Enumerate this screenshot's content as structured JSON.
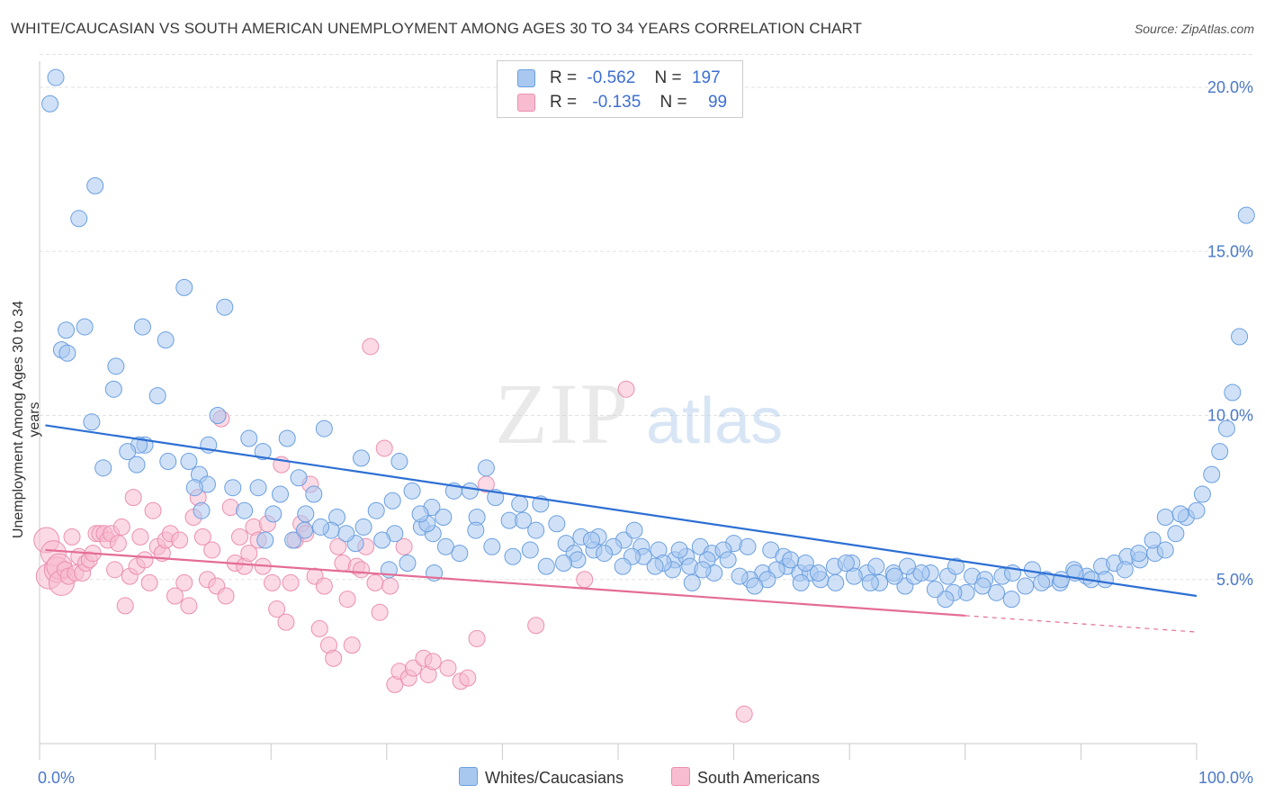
{
  "title": "WHITE/CAUCASIAN VS SOUTH AMERICAN UNEMPLOYMENT AMONG AGES 30 TO 34 YEARS CORRELATION CHART",
  "source": "Source: ZipAtlas.com",
  "watermark": {
    "zip": "ZIP",
    "atlas": "atlas"
  },
  "legend": {
    "rows": [
      {
        "r_label": "R =",
        "r_value": "-0.562",
        "n_label": "N =",
        "n_value": "197"
      },
      {
        "r_label": "R =",
        "r_value": "-0.135",
        "n_label": "N =",
        "n_value": "99"
      }
    ]
  },
  "colors": {
    "blue_fill": "#a9c8f0",
    "blue_stroke": "#6a9fe0",
    "blue_line": "#2d6fd3",
    "pink_fill": "#f7bcd0",
    "pink_stroke": "#ec8fb0",
    "pink_line": "#e46d95",
    "axis_text": "#4a78c8",
    "grid": "#e2e2e2"
  },
  "chart_data": {
    "type": "scatter",
    "title": "WHITE/CAUCASIAN VS SOUTH AMERICAN UNEMPLOYMENT AMONG AGES 30 TO 34 YEARS CORRELATION CHART",
    "xlabel": "",
    "ylabel": "Unemployment Among Ages 30 to 34 years",
    "xlim": [
      0,
      100
    ],
    "ylim": [
      0,
      21
    ],
    "x_tick_labels": [
      "0.0%",
      "100.0%"
    ],
    "y_ticks": [
      5,
      10,
      15,
      20
    ],
    "y_tick_labels": [
      "5.0%",
      "10.0%",
      "15.0%",
      "20.0%"
    ],
    "series": [
      {
        "name": "Whites/Caucasians",
        "r": -0.562,
        "n": 197,
        "trend": {
          "x0": 0.5,
          "y0": 9.7,
          "x1": 100,
          "y1": 4.5
        },
        "points": [
          [
            1.4,
            20.3
          ],
          [
            0.9,
            19.5
          ],
          [
            4.8,
            17
          ],
          [
            3.4,
            16
          ],
          [
            12.5,
            13.9
          ],
          [
            16,
            13.3
          ],
          [
            3.9,
            12.7
          ],
          [
            8.9,
            12.7
          ],
          [
            2.3,
            12.6
          ],
          [
            10.9,
            12.3
          ],
          [
            1.9,
            12
          ],
          [
            2.4,
            11.9
          ],
          [
            6.6,
            11.5
          ],
          [
            6.4,
            10.8
          ],
          [
            10.2,
            10.6
          ],
          [
            24.6,
            9.6
          ],
          [
            15.4,
            10
          ],
          [
            4.5,
            9.8
          ],
          [
            18.1,
            9.3
          ],
          [
            21.4,
            9.3
          ],
          [
            14.6,
            9.1
          ],
          [
            9.1,
            9.1
          ],
          [
            8.6,
            9.1
          ],
          [
            7.6,
            8.9
          ],
          [
            19.3,
            8.9
          ],
          [
            11.1,
            8.6
          ],
          [
            12.9,
            8.6
          ],
          [
            8.4,
            8.5
          ],
          [
            5.5,
            8.4
          ],
          [
            13.8,
            8.2
          ],
          [
            22.4,
            8.1
          ],
          [
            27.8,
            8.7
          ],
          [
            31.1,
            8.6
          ],
          [
            32.2,
            7.7
          ],
          [
            14.5,
            7.9
          ],
          [
            13.4,
            7.8
          ],
          [
            16.7,
            7.8
          ],
          [
            18.9,
            7.8
          ],
          [
            20.8,
            7.6
          ],
          [
            23.7,
            7.6
          ],
          [
            30.5,
            7.4
          ],
          [
            33.9,
            7.2
          ],
          [
            38.6,
            8.4
          ],
          [
            35.8,
            7.7
          ],
          [
            37.2,
            7.7
          ],
          [
            39.4,
            7.5
          ],
          [
            41.5,
            7.3
          ],
          [
            43.3,
            7.3
          ],
          [
            25.7,
            6.9
          ],
          [
            29.1,
            7.1
          ],
          [
            20.2,
            7
          ],
          [
            23,
            7
          ],
          [
            14,
            7.1
          ],
          [
            28,
            6.6
          ],
          [
            34.9,
            6.9
          ],
          [
            33,
            6.6
          ],
          [
            30.7,
            6.4
          ],
          [
            37.8,
            6.9
          ],
          [
            34,
            6.4
          ],
          [
            33.5,
            6.7
          ],
          [
            32.9,
            7
          ],
          [
            40.6,
            6.8
          ],
          [
            41.8,
            6.8
          ],
          [
            44.7,
            6.7
          ],
          [
            42.9,
            6.5
          ],
          [
            45.5,
            6.1
          ],
          [
            46.8,
            6.3
          ],
          [
            48.3,
            6.3
          ],
          [
            50.5,
            6.2
          ],
          [
            49.6,
            6
          ],
          [
            52,
            6
          ],
          [
            51.4,
            6.5
          ],
          [
            47.9,
            5.9
          ],
          [
            46.2,
            5.8
          ],
          [
            53.5,
            5.9
          ],
          [
            54.9,
            5.6
          ],
          [
            55.9,
            5.7
          ],
          [
            57.1,
            6
          ],
          [
            58.1,
            5.8
          ],
          [
            60,
            6.1
          ],
          [
            61.2,
            6
          ],
          [
            63.2,
            5.9
          ],
          [
            64.3,
            5.7
          ],
          [
            59.1,
            5.9
          ],
          [
            56.2,
            5.4
          ],
          [
            54.7,
            5.3
          ],
          [
            57.7,
            5.6
          ],
          [
            62.5,
            5.2
          ],
          [
            61.4,
            5
          ],
          [
            64.6,
            5.4
          ],
          [
            65.7,
            5.2
          ],
          [
            66.6,
            5.2
          ],
          [
            65.8,
            4.9
          ],
          [
            67.5,
            5
          ],
          [
            68.7,
            5.4
          ],
          [
            70.2,
            5.5
          ],
          [
            71.5,
            5.2
          ],
          [
            72.3,
            5.4
          ],
          [
            73.8,
            5.2
          ],
          [
            74.8,
            4.8
          ],
          [
            75.6,
            5.1
          ],
          [
            77,
            5.2
          ],
          [
            78.5,
            5.1
          ],
          [
            79.2,
            5.4
          ],
          [
            80.6,
            5.1
          ],
          [
            81.7,
            5
          ],
          [
            83.2,
            5.1
          ],
          [
            84.1,
            5.2
          ],
          [
            85.8,
            5.3
          ],
          [
            87,
            5
          ],
          [
            88.2,
            4.9
          ],
          [
            89.4,
            5.3
          ],
          [
            90.5,
            5.1
          ],
          [
            91.8,
            5.4
          ],
          [
            92.9,
            5.5
          ],
          [
            94,
            5.7
          ],
          [
            95.1,
            5.6
          ],
          [
            96.4,
            5.8
          ],
          [
            97.3,
            5.9
          ],
          [
            98.2,
            6.4
          ],
          [
            99.1,
            6.9
          ],
          [
            100,
            7.1
          ],
          [
            100.5,
            7.6
          ],
          [
            101.3,
            8.2
          ],
          [
            102,
            8.9
          ],
          [
            102.6,
            9.6
          ],
          [
            103.1,
            10.7
          ],
          [
            103.7,
            12.4
          ],
          [
            104.3,
            16.1
          ],
          [
            97.3,
            6.9
          ],
          [
            98.6,
            7
          ],
          [
            96.2,
            6.2
          ],
          [
            95,
            5.8
          ],
          [
            93.8,
            5.3
          ],
          [
            92.1,
            5
          ],
          [
            90.9,
            5
          ],
          [
            89.5,
            5.2
          ],
          [
            88.3,
            5
          ],
          [
            86.6,
            4.9
          ],
          [
            85.2,
            4.8
          ],
          [
            84,
            4.4
          ],
          [
            82.7,
            4.6
          ],
          [
            81.5,
            4.8
          ],
          [
            80.1,
            4.6
          ],
          [
            79,
            4.6
          ],
          [
            78.3,
            4.4
          ],
          [
            77.4,
            4.7
          ],
          [
            76.2,
            5.2
          ],
          [
            75,
            5.4
          ],
          [
            73.9,
            5.1
          ],
          [
            72.6,
            4.9
          ],
          [
            71.8,
            4.9
          ],
          [
            70.4,
            5.1
          ],
          [
            69.7,
            5.5
          ],
          [
            68.8,
            4.9
          ],
          [
            67.3,
            5.2
          ],
          [
            66.2,
            5.5
          ],
          [
            64.9,
            5.6
          ],
          [
            63.7,
            5.3
          ],
          [
            62.9,
            5
          ],
          [
            61.8,
            4.8
          ],
          [
            60.5,
            5.1
          ],
          [
            59.5,
            5.6
          ],
          [
            58.3,
            5.2
          ],
          [
            57.3,
            5.3
          ],
          [
            56.4,
            4.9
          ],
          [
            55.3,
            5.9
          ],
          [
            53.9,
            5.5
          ],
          [
            53.2,
            5.4
          ],
          [
            52.2,
            5.7
          ],
          [
            51.2,
            5.7
          ],
          [
            50.4,
            5.4
          ],
          [
            48.8,
            5.8
          ],
          [
            47.7,
            6.2
          ],
          [
            46.5,
            5.6
          ],
          [
            45.3,
            5.5
          ],
          [
            43.8,
            5.4
          ],
          [
            42.4,
            5.9
          ],
          [
            40.9,
            5.7
          ],
          [
            39.1,
            6
          ],
          [
            37.7,
            6.5
          ],
          [
            36.3,
            5.8
          ],
          [
            35.1,
            6
          ],
          [
            34.1,
            5.2
          ],
          [
            31.8,
            5.5
          ],
          [
            30.2,
            5.3
          ],
          [
            29.6,
            6.2
          ],
          [
            27.3,
            6.1
          ],
          [
            26.5,
            6.4
          ],
          [
            25.2,
            6.5
          ],
          [
            24.3,
            6.6
          ],
          [
            22.9,
            6.5
          ],
          [
            21.9,
            6.2
          ],
          [
            19.5,
            6.2
          ],
          [
            17.7,
            7.1
          ]
        ]
      },
      {
        "name": "South Americans",
        "r": -0.135,
        "n": 99,
        "trend": {
          "x0": 0.5,
          "y0": 5.9,
          "x1": 80,
          "y1": 3.9,
          "dash_x1": 100,
          "dash_y1": 3.4
        },
        "points": [
          [
            0.6,
            6.2
          ],
          [
            0.8,
            5.1
          ],
          [
            1.2,
            5.8
          ],
          [
            1.5,
            5.3
          ],
          [
            1.7,
            5.4
          ],
          [
            1.9,
            4.9
          ],
          [
            2.2,
            5.3
          ],
          [
            2.5,
            5.1
          ],
          [
            2.8,
            6.3
          ],
          [
            3.1,
            5.2
          ],
          [
            3.4,
            5.7
          ],
          [
            3.7,
            5.2
          ],
          [
            4,
            5.5
          ],
          [
            4.3,
            5.6
          ],
          [
            4.6,
            5.8
          ],
          [
            4.9,
            6.4
          ],
          [
            5.2,
            6.4
          ],
          [
            5.6,
            6.4
          ],
          [
            5.9,
            6.2
          ],
          [
            6.2,
            6.4
          ],
          [
            6.5,
            5.3
          ],
          [
            6.8,
            6.1
          ],
          [
            7.1,
            6.6
          ],
          [
            7.4,
            4.2
          ],
          [
            7.8,
            5.1
          ],
          [
            8.1,
            7.5
          ],
          [
            8.4,
            5.4
          ],
          [
            8.7,
            6.3
          ],
          [
            9.1,
            5.6
          ],
          [
            9.5,
            4.9
          ],
          [
            9.8,
            7.1
          ],
          [
            10.2,
            6
          ],
          [
            10.6,
            5.8
          ],
          [
            10.9,
            6.2
          ],
          [
            11.3,
            6.4
          ],
          [
            11.7,
            4.5
          ],
          [
            12.1,
            6.2
          ],
          [
            12.5,
            4.9
          ],
          [
            12.9,
            4.2
          ],
          [
            13.3,
            6.9
          ],
          [
            13.7,
            7.5
          ],
          [
            14.1,
            6.3
          ],
          [
            14.5,
            5
          ],
          [
            14.9,
            5.9
          ],
          [
            15.3,
            4.8
          ],
          [
            15.7,
            9.9
          ],
          [
            16.1,
            4.5
          ],
          [
            16.5,
            7.2
          ],
          [
            16.9,
            5.5
          ],
          [
            17.3,
            6.3
          ],
          [
            17.7,
            5.4
          ],
          [
            18.1,
            5.8
          ],
          [
            18.5,
            6.6
          ],
          [
            18.9,
            6.2
          ],
          [
            19.3,
            5.4
          ],
          [
            19.7,
            6.7
          ],
          [
            20.1,
            4.9
          ],
          [
            20.5,
            4.1
          ],
          [
            20.9,
            8.5
          ],
          [
            21.3,
            3.7
          ],
          [
            21.7,
            4.9
          ],
          [
            22.1,
            6.2
          ],
          [
            22.6,
            6.7
          ],
          [
            23,
            6.4
          ],
          [
            23.4,
            7.9
          ],
          [
            23.8,
            5.1
          ],
          [
            24.2,
            3.5
          ],
          [
            24.6,
            4.8
          ],
          [
            25,
            3
          ],
          [
            25.4,
            2.6
          ],
          [
            25.8,
            6
          ],
          [
            26.2,
            5.5
          ],
          [
            26.6,
            4.4
          ],
          [
            27,
            3
          ],
          [
            27.4,
            5.4
          ],
          [
            27.8,
            5.3
          ],
          [
            28.2,
            6
          ],
          [
            28.6,
            12.1
          ],
          [
            29,
            4.9
          ],
          [
            29.4,
            4
          ],
          [
            29.8,
            9
          ],
          [
            30.3,
            4.8
          ],
          [
            30.7,
            1.8
          ],
          [
            31.1,
            2.2
          ],
          [
            31.5,
            6
          ],
          [
            31.9,
            2
          ],
          [
            32.3,
            2.3
          ],
          [
            33.2,
            2.6
          ],
          [
            33.6,
            2.1
          ],
          [
            34,
            2.5
          ],
          [
            35.3,
            2.3
          ],
          [
            36.4,
            1.9
          ],
          [
            37,
            2
          ],
          [
            37.8,
            3.2
          ],
          [
            38.6,
            7.9
          ],
          [
            42.9,
            3.6
          ],
          [
            47.1,
            5
          ],
          [
            50.7,
            10.8
          ],
          [
            60.9,
            0.9
          ]
        ]
      }
    ],
    "bottom_legend": [
      "Whites/Caucasians",
      "South Americans"
    ]
  }
}
